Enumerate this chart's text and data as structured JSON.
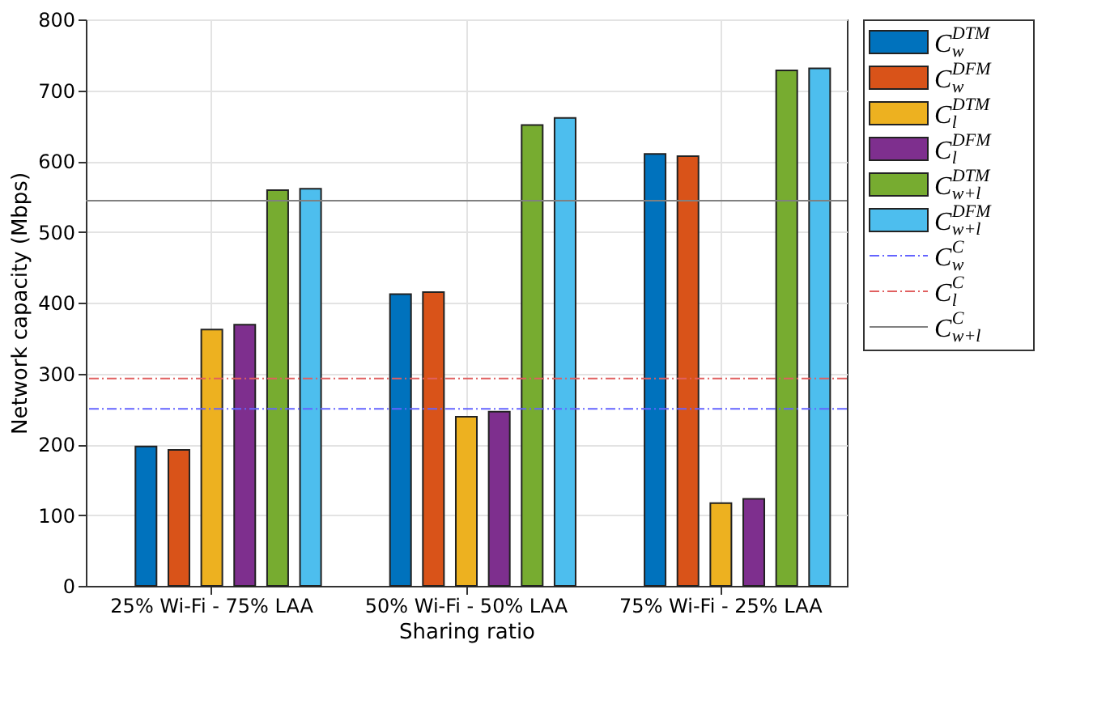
{
  "chart_data": {
    "type": "bar",
    "xlabel": "Sharing ratio",
    "ylabel": "Network capacity (Mbps)",
    "categories": [
      "25% Wi-Fi - 75% LAA",
      "50% Wi-Fi - 50% LAA",
      "75% Wi-Fi - 25% LAA"
    ],
    "series": [
      {
        "name": "C$_{w}$$^{DTM}$",
        "color": "#0072bd",
        "values": [
          197,
          412,
          610
        ]
      },
      {
        "name": "C$_{w}$$^{DFM}$",
        "color": "#d95319",
        "values": [
          192,
          415,
          607
        ]
      },
      {
        "name": "C$_{l}$$^{DTM}$",
        "color": "#edb120",
        "values": [
          362,
          239,
          117
        ]
      },
      {
        "name": "C$_{l}$$^{DFM}$",
        "color": "#7e2f8e",
        "values": [
          369,
          246,
          123
        ]
      },
      {
        "name": "C$_{w+l}$$^{DTM}$",
        "color": "#77ac30",
        "values": [
          559,
          651,
          728
        ]
      },
      {
        "name": "C$_{w+l}$$^{DFM}$",
        "color": "#4dbeee",
        "values": [
          561,
          661,
          731
        ]
      }
    ],
    "ref_lines": [
      {
        "axis": "y",
        "value": 250,
        "label": "C$_{w}$$^{C}$",
        "color": "#6464ff",
        "line_style": "dashdot"
      },
      {
        "axis": "y",
        "value": 293,
        "label": "C$_{l}$$^{C}$",
        "color": "#e06060",
        "line_style": "dashdot"
      },
      {
        "axis": "y",
        "value": 544,
        "label": "C$_{w+l}$$^{C}$",
        "color": "#808080",
        "line_style": "solid"
      }
    ],
    "ylim": [
      0,
      800
    ],
    "yticks": [
      0,
      100,
      200,
      300,
      400,
      500,
      600,
      700,
      800
    ],
    "grid": true,
    "legend": "top right"
  }
}
